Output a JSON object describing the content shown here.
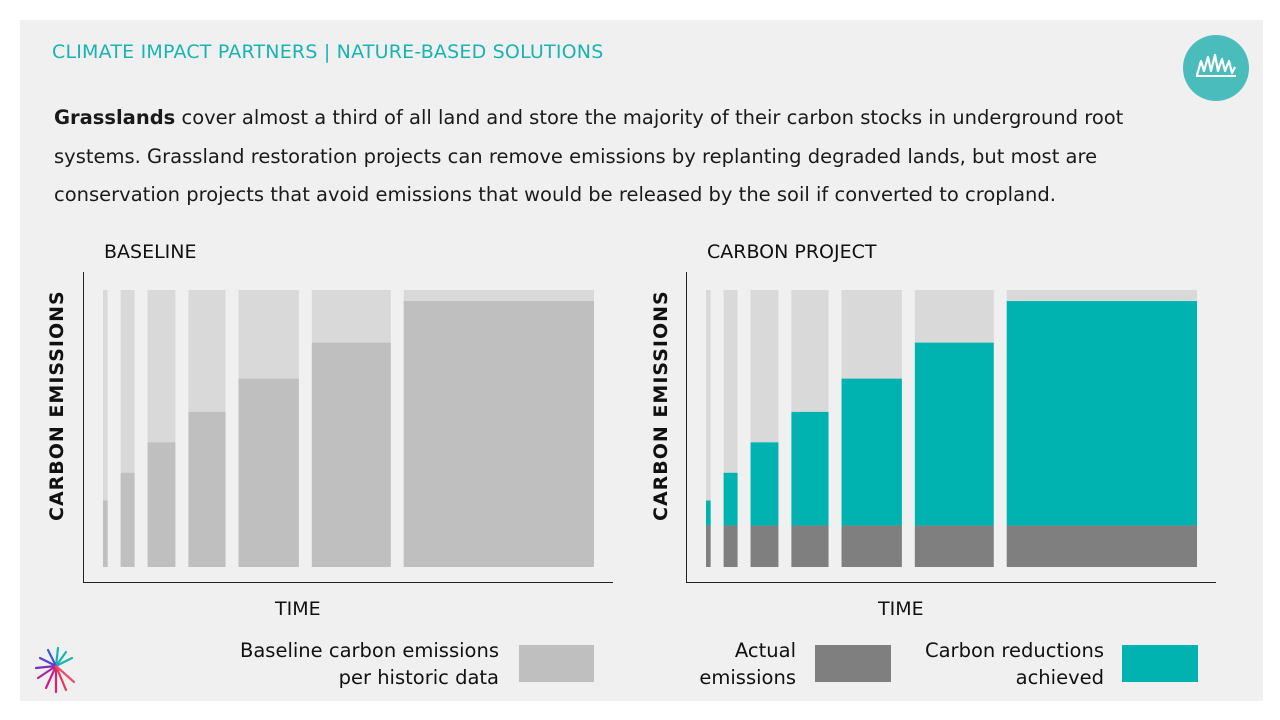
{
  "header": {
    "title": "CLIMATE IMPACT PARTNERS | NATURE-BASED SOLUTIONS",
    "badge_icon": "grass-icon"
  },
  "intro": {
    "bold_term": "Grasslands",
    "text": " cover almost a third of all land and store the majority of their carbon stocks in underground root systems. Grassland restoration projects can remove emissions by replanting degraded lands, but most are conservation projects that avoid emissions that would be released by the soil if converted to cropland."
  },
  "colors": {
    "background": "#f0f0f0",
    "accent": "#19b3b3",
    "potential": "#d9d9d9",
    "baseline": "#bfbfbf",
    "actual": "#7f7f7f",
    "reductions": "#00b2b0"
  },
  "chart_data": [
    {
      "type": "bar",
      "title": "BASELINE",
      "xlabel": "TIME",
      "ylabel": "CARBON EMISSIONS",
      "bar_count": 7,
      "relative_widths": [
        1,
        3,
        6,
        8,
        13,
        17,
        41
      ],
      "ylim": [
        0,
        100
      ],
      "series": [
        {
          "name": "Baseline carbon emissions per historic data",
          "color": "#bfbfbf",
          "values": [
            24,
            34,
            45,
            56,
            68,
            81,
            96
          ]
        }
      ],
      "total_height": 100
    },
    {
      "type": "bar",
      "title": "CARBON PROJECT",
      "xlabel": "TIME",
      "ylabel": "CARBON EMISSIONS",
      "bar_count": 7,
      "relative_widths": [
        1,
        3,
        6,
        8,
        13,
        17,
        41
      ],
      "ylim": [
        0,
        100
      ],
      "stacked": true,
      "series": [
        {
          "name": "Actual emissions",
          "color": "#7f7f7f",
          "values": [
            15,
            15,
            15,
            15,
            15,
            15,
            15
          ]
        },
        {
          "name": "Carbon reductions achieved",
          "color": "#00b2b0",
          "values": [
            9,
            19,
            30,
            41,
            53,
            66,
            81
          ]
        }
      ],
      "total_height": 100
    }
  ],
  "legend": {
    "baseline_label_line1": "Baseline carbon emissions",
    "baseline_label_line2": "per historic data",
    "actual_label_line1": "Actual",
    "actual_label_line2": "emissions",
    "reductions_label_line1": "Carbon reductions",
    "reductions_label_line2": "achieved"
  },
  "logo": {
    "icon": "climate-impact-partners-logo-icon"
  }
}
